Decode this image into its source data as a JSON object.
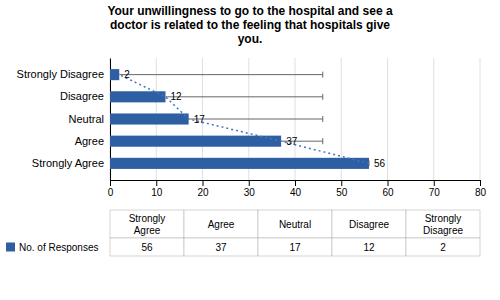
{
  "chart_data": {
    "type": "bar",
    "orientation": "horizontal",
    "title": "Your unwillingness to go to the hospital and see a\ndoctor is related to the feeling that hospitals give\nyou.",
    "categories": [
      "Strongly Agree",
      "Agree",
      "Neutral",
      "Disagree",
      "Strongly Disagree"
    ],
    "series": [
      {
        "name": "No. of Responses",
        "type": "bar",
        "color": "#2E5FA3",
        "values": [
          56,
          37,
          17,
          12,
          2
        ],
        "errors": [
          0,
          9,
          29,
          34,
          44
        ]
      },
      {
        "type": "line",
        "color": "#4472C4",
        "line_style": "dotted",
        "values": [
          56,
          37,
          17,
          12,
          2
        ]
      }
    ],
    "xlim": [
      0,
      80
    ],
    "xticks": [
      0,
      10,
      20,
      30,
      40,
      50,
      60,
      70,
      80
    ],
    "grid": true,
    "data_labels": true,
    "table_columns": [
      "Strongly\nAgree",
      "Agree",
      "Neutral",
      "Disagree",
      "Strongly\nDisagree"
    ]
  }
}
